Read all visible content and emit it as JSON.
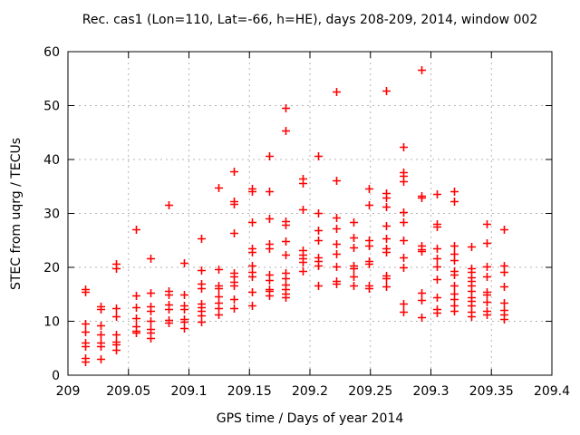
{
  "window": {
    "background": "#ffffff"
  },
  "chart_data": {
    "type": "scatter",
    "title": "Rec. cas1 (Lon=110, Lat=-66, h=HE), days 208-209, 2014, window 002",
    "xlabel": "GPS time / Days of year 2014",
    "ylabel": "STEC from uqrg / TECUs",
    "xlim": [
      209.0,
      209.4
    ],
    "ylim": [
      0,
      60
    ],
    "xticks": [
      209.0,
      209.05,
      209.1,
      209.15,
      209.2,
      209.25,
      209.3,
      209.35,
      209.4
    ],
    "xtick_labels": [
      "209",
      "209.05",
      "209.1",
      "209.15",
      "209.2",
      "209.25",
      "209.3",
      "209.35",
      "209.4"
    ],
    "yticks": [
      0,
      10,
      20,
      30,
      40,
      50,
      60
    ],
    "ytick_labels": [
      "0",
      "10",
      "20",
      "30",
      "40",
      "50",
      "60"
    ],
    "grid": true,
    "legend": "none",
    "marker": {
      "shape": "plus",
      "color": "#ff0000",
      "size": 9
    },
    "grid_color": "#b3b3b3",
    "axis_color": "#000000",
    "series": [
      {
        "name": "STEC from uqrg",
        "points": [
          [
            209.014,
            16.0
          ],
          [
            209.014,
            15.5
          ],
          [
            209.014,
            9.5
          ],
          [
            209.014,
            8.1
          ],
          [
            209.014,
            6.0
          ],
          [
            209.014,
            5.3
          ],
          [
            209.014,
            3.2
          ],
          [
            209.014,
            2.5
          ],
          [
            209.027,
            12.7
          ],
          [
            209.027,
            12.2
          ],
          [
            209.027,
            9.2
          ],
          [
            209.027,
            7.5
          ],
          [
            209.027,
            6.0
          ],
          [
            209.027,
            5.3
          ],
          [
            209.027,
            3.0
          ],
          [
            209.04,
            20.7
          ],
          [
            209.04,
            19.9
          ],
          [
            209.04,
            12.5
          ],
          [
            209.04,
            10.9
          ],
          [
            209.04,
            7.6
          ],
          [
            209.04,
            6.3
          ],
          [
            209.04,
            5.7
          ],
          [
            209.04,
            4.7
          ],
          [
            209.056,
            27.1
          ],
          [
            209.056,
            14.8
          ],
          [
            209.056,
            12.6
          ],
          [
            209.056,
            10.6
          ],
          [
            209.056,
            9.0
          ],
          [
            209.056,
            8.3
          ],
          [
            209.056,
            7.9
          ],
          [
            209.068,
            21.6
          ],
          [
            209.068,
            15.3
          ],
          [
            209.068,
            12.7
          ],
          [
            209.068,
            11.9
          ],
          [
            209.068,
            10.1
          ],
          [
            209.068,
            8.6
          ],
          [
            209.068,
            7.9
          ],
          [
            209.068,
            6.9
          ],
          [
            209.083,
            31.6
          ],
          [
            209.083,
            15.6
          ],
          [
            209.083,
            14.9
          ],
          [
            209.083,
            13.1
          ],
          [
            209.083,
            12.3
          ],
          [
            209.083,
            10.2
          ],
          [
            209.083,
            9.7
          ],
          [
            209.096,
            20.9
          ],
          [
            209.096,
            14.9
          ],
          [
            209.096,
            13.0
          ],
          [
            209.096,
            12.2
          ],
          [
            209.096,
            10.5
          ],
          [
            209.096,
            9.9
          ],
          [
            209.096,
            8.7
          ],
          [
            209.11,
            25.4
          ],
          [
            209.11,
            19.5
          ],
          [
            209.11,
            16.9
          ],
          [
            209.11,
            16.1
          ],
          [
            209.11,
            13.3
          ],
          [
            209.11,
            12.6
          ],
          [
            209.11,
            11.9
          ],
          [
            209.11,
            11.1
          ],
          [
            209.11,
            9.9
          ],
          [
            209.124,
            34.8
          ],
          [
            209.124,
            19.6
          ],
          [
            209.124,
            16.6
          ],
          [
            209.124,
            16.1
          ],
          [
            209.124,
            14.6
          ],
          [
            209.124,
            13.5
          ],
          [
            209.124,
            12.4
          ],
          [
            209.124,
            11.3
          ],
          [
            209.137,
            37.8
          ],
          [
            209.137,
            32.3
          ],
          [
            209.137,
            31.7
          ],
          [
            209.137,
            26.4
          ],
          [
            209.137,
            19.0
          ],
          [
            209.137,
            18.3
          ],
          [
            209.137,
            17.3
          ],
          [
            209.137,
            16.7
          ],
          [
            209.137,
            14.2
          ],
          [
            209.137,
            12.5
          ],
          [
            209.152,
            34.6
          ],
          [
            209.152,
            34.1
          ],
          [
            209.152,
            28.4
          ],
          [
            209.152,
            23.6
          ],
          [
            209.152,
            22.9
          ],
          [
            209.152,
            20.4
          ],
          [
            209.152,
            19.1
          ],
          [
            209.152,
            18.3
          ],
          [
            209.152,
            15.4
          ],
          [
            209.152,
            13.0
          ],
          [
            209.166,
            40.7
          ],
          [
            209.166,
            34.2
          ],
          [
            209.166,
            29.0
          ],
          [
            209.166,
            24.3
          ],
          [
            209.166,
            23.6
          ],
          [
            209.166,
            18.7
          ],
          [
            209.166,
            17.6
          ],
          [
            209.166,
            16.0
          ],
          [
            209.166,
            15.6
          ],
          [
            209.166,
            14.8
          ],
          [
            209.18,
            49.6
          ],
          [
            209.18,
            45.4
          ],
          [
            209.18,
            28.6
          ],
          [
            209.18,
            27.9
          ],
          [
            209.18,
            24.9
          ],
          [
            209.18,
            22.3
          ],
          [
            209.18,
            19.0
          ],
          [
            209.18,
            17.9
          ],
          [
            209.18,
            16.8
          ],
          [
            209.18,
            16.0
          ],
          [
            209.18,
            15.1
          ],
          [
            209.18,
            14.4
          ],
          [
            209.194,
            36.4
          ],
          [
            209.194,
            35.6
          ],
          [
            209.194,
            30.8
          ],
          [
            209.194,
            23.2
          ],
          [
            209.194,
            22.3
          ],
          [
            209.194,
            21.6
          ],
          [
            209.194,
            21.0
          ],
          [
            209.194,
            19.3
          ],
          [
            209.207,
            40.7
          ],
          [
            209.207,
            30.1
          ],
          [
            209.207,
            26.9
          ],
          [
            209.207,
            25.0
          ],
          [
            209.207,
            21.8
          ],
          [
            209.207,
            21.2
          ],
          [
            209.207,
            20.4
          ],
          [
            209.207,
            16.7
          ],
          [
            209.222,
            52.6
          ],
          [
            209.222,
            36.2
          ],
          [
            209.222,
            29.2
          ],
          [
            209.222,
            27.3
          ],
          [
            209.222,
            24.3
          ],
          [
            209.222,
            22.6
          ],
          [
            209.222,
            20.1
          ],
          [
            209.222,
            17.5
          ],
          [
            209.222,
            16.9
          ],
          [
            209.236,
            28.4
          ],
          [
            209.236,
            25.6
          ],
          [
            209.236,
            23.7
          ],
          [
            209.236,
            20.3
          ],
          [
            209.236,
            19.8
          ],
          [
            209.236,
            18.3
          ],
          [
            209.236,
            16.6
          ],
          [
            209.249,
            34.7
          ],
          [
            209.249,
            31.6
          ],
          [
            209.249,
            25.1
          ],
          [
            209.249,
            24.0
          ],
          [
            209.249,
            21.2
          ],
          [
            209.249,
            20.6
          ],
          [
            209.249,
            16.7
          ],
          [
            209.249,
            16.2
          ],
          [
            209.263,
            52.7
          ],
          [
            209.263,
            33.8
          ],
          [
            209.263,
            32.9
          ],
          [
            209.263,
            31.3
          ],
          [
            209.263,
            27.8
          ],
          [
            209.263,
            25.3
          ],
          [
            209.263,
            23.5
          ],
          [
            209.263,
            22.8
          ],
          [
            209.263,
            18.5
          ],
          [
            209.263,
            17.9
          ],
          [
            209.263,
            16.4
          ],
          [
            209.277,
            42.4
          ],
          [
            209.277,
            37.6
          ],
          [
            209.277,
            37.0
          ],
          [
            209.277,
            36.0
          ],
          [
            209.277,
            30.3
          ],
          [
            209.277,
            28.4
          ],
          [
            209.277,
            25.1
          ],
          [
            209.277,
            21.8
          ],
          [
            209.277,
            20.0
          ],
          [
            209.277,
            13.3
          ],
          [
            209.277,
            11.7
          ],
          [
            209.292,
            56.7
          ],
          [
            209.292,
            33.3
          ],
          [
            209.292,
            32.9
          ],
          [
            209.292,
            24.1
          ],
          [
            209.292,
            23.4
          ],
          [
            209.292,
            23.0
          ],
          [
            209.292,
            15.3
          ],
          [
            209.292,
            14.0
          ],
          [
            209.292,
            10.7
          ],
          [
            209.305,
            33.6
          ],
          [
            209.305,
            28.0
          ],
          [
            209.305,
            27.5
          ],
          [
            209.305,
            23.5
          ],
          [
            209.305,
            21.6
          ],
          [
            209.305,
            20.2
          ],
          [
            209.305,
            17.8
          ],
          [
            209.305,
            14.4
          ],
          [
            209.305,
            12.3
          ],
          [
            209.305,
            11.6
          ],
          [
            209.319,
            34.1
          ],
          [
            209.319,
            32.3
          ],
          [
            209.319,
            24.1
          ],
          [
            209.319,
            22.6
          ],
          [
            209.319,
            21.4
          ],
          [
            209.319,
            19.4
          ],
          [
            209.319,
            18.6
          ],
          [
            209.319,
            16.6
          ],
          [
            209.319,
            15.2
          ],
          [
            209.319,
            14.2
          ],
          [
            209.319,
            12.9
          ],
          [
            209.319,
            12.0
          ],
          [
            209.333,
            23.8
          ],
          [
            209.333,
            19.9
          ],
          [
            209.333,
            19.2
          ],
          [
            209.333,
            18.1
          ],
          [
            209.333,
            17.4
          ],
          [
            209.333,
            16.6
          ],
          [
            209.333,
            15.6
          ],
          [
            209.333,
            14.5
          ],
          [
            209.333,
            13.8
          ],
          [
            209.333,
            12.9
          ],
          [
            209.333,
            11.7
          ],
          [
            209.333,
            11.0
          ],
          [
            209.346,
            28.0
          ],
          [
            209.346,
            24.6
          ],
          [
            209.346,
            20.1
          ],
          [
            209.346,
            18.3
          ],
          [
            209.346,
            15.5
          ],
          [
            209.346,
            14.9
          ],
          [
            209.346,
            13.6
          ],
          [
            209.346,
            11.9
          ],
          [
            209.346,
            11.3
          ],
          [
            209.36,
            27.0
          ],
          [
            209.36,
            20.4
          ],
          [
            209.36,
            19.2
          ],
          [
            209.36,
            16.4
          ],
          [
            209.36,
            13.5
          ],
          [
            209.36,
            12.1
          ],
          [
            209.36,
            11.2
          ],
          [
            209.36,
            10.5
          ]
        ]
      }
    ]
  }
}
